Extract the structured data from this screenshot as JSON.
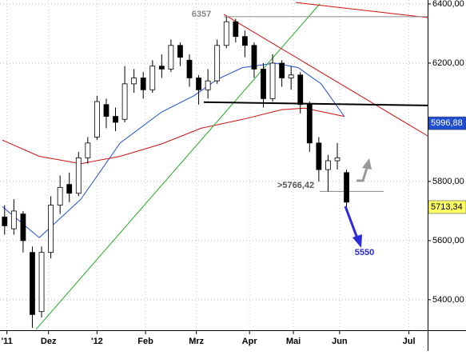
{
  "chart_data": {
    "type": "candlestick",
    "x": [
      0,
      4,
      8,
      12,
      16,
      20,
      24,
      28,
      32,
      36,
      40,
      44,
      48,
      52,
      56,
      60,
      64,
      68,
      72,
      76,
      80,
      84,
      88,
      92,
      96,
      100,
      104,
      108,
      112,
      116,
      120,
      124,
      128,
      132,
      136,
      140,
      144,
      148
    ],
    "open": [
      5680,
      5640,
      5690,
      5560,
      5360,
      5560,
      5720,
      5790,
      5760,
      5880,
      5950,
      6060,
      6020,
      6010,
      6130,
      6150,
      6110,
      6190,
      6180,
      6260,
      6210,
      6150,
      6110,
      6140,
      6260,
      6340,
      6290,
      6260,
      6180,
      6080,
      6200,
      6150,
      6160,
      6060,
      5930,
      5840,
      5870,
      5830
    ],
    "high": [
      5720,
      5740,
      5700,
      5580,
      5580,
      5750,
      5820,
      5830,
      5900,
      5950,
      6090,
      6080,
      6050,
      6190,
      6180,
      6170,
      6210,
      6230,
      6280,
      6270,
      6230,
      6160,
      6180,
      6280,
      6357,
      6350,
      6310,
      6270,
      6200,
      6230,
      6210,
      6190,
      6170,
      6070,
      5950,
      5890,
      5930,
      5840
    ],
    "low": [
      5620,
      5620,
      5560,
      5305,
      5340,
      5540,
      5690,
      5730,
      5750,
      5860,
      5940,
      5980,
      5970,
      6000,
      6100,
      6080,
      6100,
      6150,
      6170,
      6190,
      6120,
      6060,
      6080,
      6130,
      6250,
      6270,
      6220,
      6150,
      6050,
      6070,
      6120,
      6110,
      6030,
      5900,
      5800,
      5766,
      5840,
      5700
    ],
    "close": [
      5650,
      5700,
      5600,
      5350,
      5560,
      5720,
      5780,
      5760,
      5880,
      5930,
      6070,
      6020,
      6000,
      6130,
      6150,
      6110,
      6190,
      6180,
      6260,
      6220,
      6150,
      6110,
      6140,
      6260,
      6340,
      6290,
      6260,
      6180,
      6080,
      6200,
      6150,
      6160,
      6060,
      5930,
      5840,
      5870,
      5880,
      5730
    ],
    "up_color": "#ffffff",
    "down_color": "#000000",
    "series": [
      {
        "color": "#1f4fd0",
        "x": [
          -1,
          15,
          33,
          50,
          68,
          82,
          92,
          103,
          117,
          127,
          137,
          147
        ],
        "values": [
          5715,
          5610,
          5740,
          5930,
          6035,
          6090,
          6145,
          6185,
          6200,
          6185,
          6130,
          6020
        ]
      },
      {
        "color": "#d01010",
        "x": [
          -1,
          15,
          33,
          50,
          68,
          85,
          103,
          120,
          130,
          147
        ],
        "values": [
          5940,
          5885,
          5860,
          5885,
          5927,
          5980,
          6010,
          6043,
          6048,
          6020
        ]
      }
    ],
    "trendlines": [
      {
        "color": "#22aa22",
        "x": [
          13.6,
          136.4
        ],
        "y": [
          5300,
          6400
        ]
      },
      {
        "color": "#d01010",
        "x": [
          94.9,
          183.1
        ],
        "y": [
          6365,
          5954
        ]
      },
      {
        "color": "#d01010",
        "x": [
          126,
          183.1
        ],
        "y": [
          6405,
          6354
        ]
      },
      {
        "color": "#888888",
        "x": [
          94.9,
          183.1
        ],
        "y": [
          6357,
          6357
        ]
      },
      {
        "color": "#000000",
        "x": [
          86.2,
          183.1
        ],
        "y": [
          6068,
          6057
        ]
      },
      {
        "color": "#888888",
        "x": [
          136.4,
          164
        ],
        "y": [
          5766.42,
          5766.42
        ]
      }
    ],
    "annotations": [
      "6357",
      ">5766,42",
      "5550"
    ],
    "price_boxes": [
      {
        "value": 5996.88,
        "label": "5996,88",
        "color": "#1f4fd0"
      },
      {
        "value": 5713.34,
        "label": "5713,34",
        "color": "#ffff66"
      }
    ],
    "xlim": [
      -2,
      183.1
    ],
    "xticks": [
      {
        "value": 1,
        "label": "'11"
      },
      {
        "value": 19,
        "label": "Dez"
      },
      {
        "value": 40,
        "label": "'12"
      },
      {
        "value": 61,
        "label": "Feb"
      },
      {
        "value": 83,
        "label": "Mrz"
      },
      {
        "value": 106,
        "label": "Apr"
      },
      {
        "value": 125,
        "label": "Mai"
      },
      {
        "value": 145,
        "label": "Jun"
      },
      {
        "value": 175,
        "label": "Jul"
      }
    ],
    "ylim": [
      5297,
      6413.5
    ],
    "yticks": [
      {
        "value": 6400,
        "label": "6400,00"
      },
      {
        "value": 6200,
        "label": "6200,00"
      },
      {
        "value": 5800,
        "label": "5800,00"
      },
      {
        "value": 5600,
        "label": "5600,00"
      },
      {
        "value": 5400,
        "label": "5400,00"
      }
    ],
    "grid": true
  }
}
